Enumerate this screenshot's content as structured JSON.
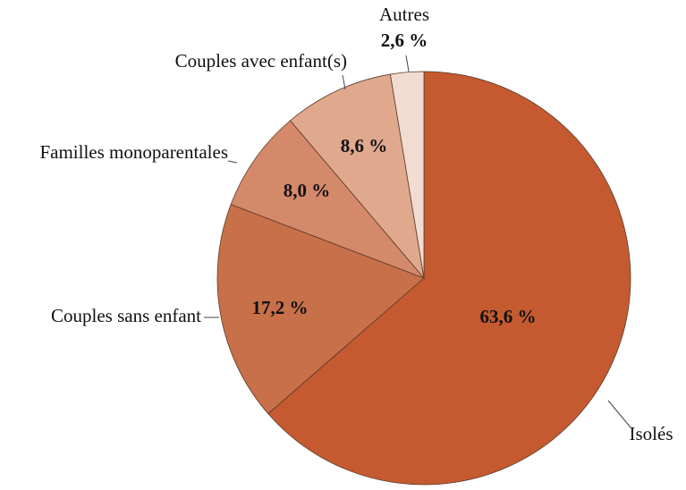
{
  "chart_data": {
    "type": "pie",
    "categories": [
      "Isolés",
      "Couples sans enfant",
      "Familles monoparentales",
      "Couples avec enfant(s)",
      "Autres"
    ],
    "values": [
      63.6,
      17.2,
      8.0,
      8.6,
      2.6
    ],
    "value_labels": [
      "63,6 %",
      "17,2 %",
      "8,0 %",
      "8,6 %",
      "2,6 %"
    ],
    "colors": [
      "#c55a30",
      "#c8704a",
      "#d4896a",
      "#e0a88d",
      "#f2dcd2"
    ]
  }
}
